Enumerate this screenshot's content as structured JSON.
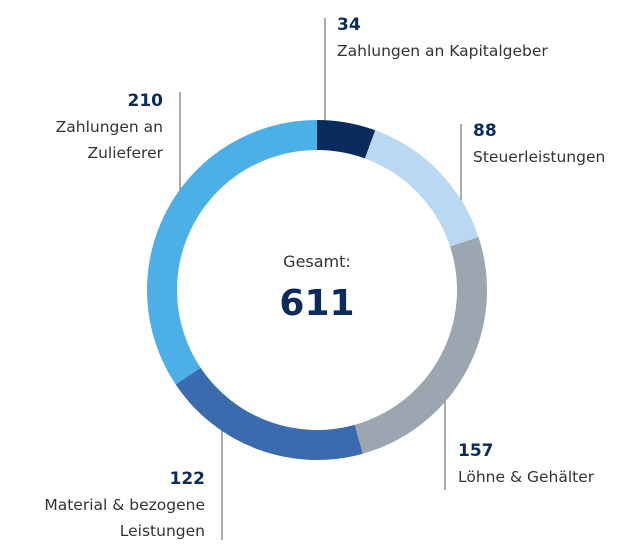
{
  "chart_data": {
    "type": "donut",
    "categories": [
      "Zahlungen an Kapitalgeber",
      "Steuerleistungen",
      "Löhne & Gehälter",
      "Material & bezogene Leistungen",
      "Zahlungen an Zulieferer"
    ],
    "values": [
      34,
      88,
      157,
      122,
      210
    ],
    "colors": [
      "#0b2b5c",
      "#b9d9f3",
      "#9ca6b1",
      "#3b6aae",
      "#4cafe6"
    ],
    "center_label": "Gesamt:",
    "total": 611
  }
}
